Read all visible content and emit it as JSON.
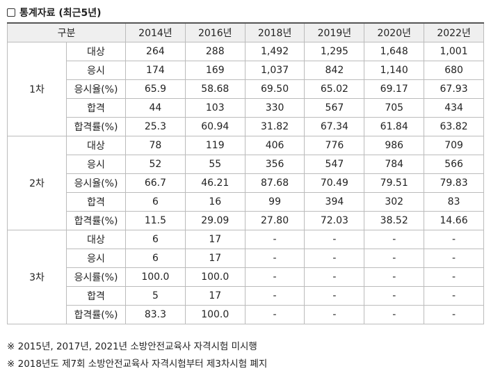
{
  "title": "통계자료 (최근5년)",
  "table": {
    "header": [
      "구분",
      "2014년",
      "2016년",
      "2018년",
      "2019년",
      "2020년",
      "2022년"
    ],
    "groups": [
      {
        "label": "1차",
        "rows": [
          {
            "label": "대상",
            "values": [
              "264",
              "288",
              "1,492",
              "1,295",
              "1,648",
              "1,001"
            ]
          },
          {
            "label": "응시",
            "values": [
              "174",
              "169",
              "1,037",
              "842",
              "1,140",
              "680"
            ]
          },
          {
            "label": "응시율(%)",
            "values": [
              "65.9",
              "58.68",
              "69.50",
              "65.02",
              "69.17",
              "67.93"
            ]
          },
          {
            "label": "합격",
            "values": [
              "44",
              "103",
              "330",
              "567",
              "705",
              "434"
            ]
          },
          {
            "label": "합격률(%)",
            "values": [
              "25.3",
              "60.94",
              "31.82",
              "67.34",
              "61.84",
              "63.82"
            ]
          }
        ]
      },
      {
        "label": "2차",
        "rows": [
          {
            "label": "대상",
            "values": [
              "78",
              "119",
              "406",
              "776",
              "986",
              "709"
            ]
          },
          {
            "label": "응시",
            "values": [
              "52",
              "55",
              "356",
              "547",
              "784",
              "566"
            ]
          },
          {
            "label": "응시율(%)",
            "values": [
              "66.7",
              "46.21",
              "87.68",
              "70.49",
              "79.51",
              "79.83"
            ]
          },
          {
            "label": "합격",
            "values": [
              "6",
              "16",
              "99",
              "394",
              "302",
              "83"
            ]
          },
          {
            "label": "합격률(%)",
            "values": [
              "11.5",
              "29.09",
              "27.80",
              "72.03",
              "38.52",
              "14.66"
            ]
          }
        ]
      },
      {
        "label": "3차",
        "rows": [
          {
            "label": "대상",
            "values": [
              "6",
              "17",
              "-",
              "-",
              "-",
              "-"
            ]
          },
          {
            "label": "응시",
            "values": [
              "6",
              "17",
              "-",
              "-",
              "-",
              "-"
            ]
          },
          {
            "label": "응시률(%)",
            "values": [
              "100.0",
              "100.0",
              "-",
              "-",
              "-",
              "-"
            ]
          },
          {
            "label": "합격",
            "values": [
              "5",
              "17",
              "-",
              "-",
              "-",
              "-"
            ]
          },
          {
            "label": "합격률(%)",
            "values": [
              "83.3",
              "100.0",
              "-",
              "-",
              "-",
              "-"
            ]
          }
        ]
      }
    ]
  },
  "notes": [
    "※ 2015년, 2017년, 2021년 소방안전교육사 자격시험 미시행",
    "※ 2018년도 제7회 소방안전교육사 자격시험부터 제3차시험 폐지"
  ]
}
